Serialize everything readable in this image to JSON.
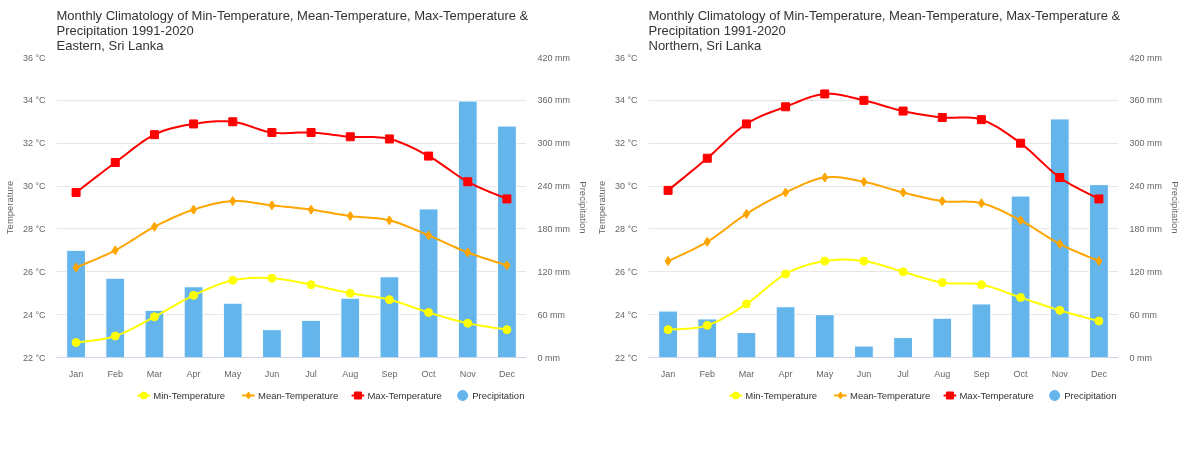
{
  "chart_data": [
    {
      "type": "line",
      "title": "Monthly Climatology of Min-Temperature, Mean-Temperature, Max-Temperature & Precipitation 1991-2020",
      "subtitle": "Eastern, Sri Lanka",
      "ylabel": "Temperature",
      "y2label": "Precipitation",
      "categories": [
        "Jan",
        "Feb",
        "Mar",
        "Apr",
        "May",
        "Jun",
        "Jul",
        "Aug",
        "Sep",
        "Oct",
        "Nov",
        "Dec"
      ],
      "series": [
        {
          "name": "Min-Temperature",
          "marker": "circle",
          "color": "#ffff00",
          "values": [
            22.7,
            23.0,
            23.9,
            24.9,
            25.6,
            25.7,
            25.4,
            25.0,
            24.7,
            24.1,
            23.6,
            23.3
          ]
        },
        {
          "name": "Mean-Temperature",
          "marker": "diamond",
          "color": "#ffa500",
          "values": [
            26.2,
            27.0,
            28.1,
            28.9,
            29.3,
            29.1,
            28.9,
            28.6,
            28.4,
            27.7,
            26.9,
            26.3
          ]
        },
        {
          "name": "Max-Temperature",
          "marker": "square",
          "color": "#ff0000",
          "values": [
            29.7,
            31.1,
            32.4,
            32.9,
            33.0,
            32.5,
            32.5,
            32.3,
            32.2,
            31.4,
            30.2,
            29.4
          ]
        },
        {
          "name": "Precipitation",
          "type": "bar",
          "axis": "y2",
          "color": "#64b5ec",
          "values": [
            150,
            111,
            66,
            99,
            76,
            39,
            52,
            83,
            113,
            208,
            359,
            324
          ]
        }
      ],
      "ylim": [
        22,
        36
      ],
      "yticks": [
        {
          "value": 22,
          "label": "22 °C"
        },
        {
          "value": 24,
          "label": "24 °C"
        },
        {
          "value": 26,
          "label": "26 °C"
        },
        {
          "value": 28,
          "label": "28 °C"
        },
        {
          "value": 30,
          "label": "30 °C"
        },
        {
          "value": 32,
          "label": "32 °C"
        },
        {
          "value": 34,
          "label": "34 °C"
        },
        {
          "value": 36,
          "label": "36 °C"
        }
      ],
      "y2lim": [
        0,
        420
      ],
      "y2ticks": [
        {
          "value": 0,
          "label": "0 mm"
        },
        {
          "value": 60,
          "label": "60 mm"
        },
        {
          "value": 120,
          "label": "120 mm"
        },
        {
          "value": 180,
          "label": "180 mm"
        },
        {
          "value": 240,
          "label": "240 mm"
        },
        {
          "value": 300,
          "label": "300 mm"
        },
        {
          "value": 360,
          "label": "360 mm"
        },
        {
          "value": 420,
          "label": "420 mm"
        }
      ],
      "grid": "y",
      "legend": "bottom"
    },
    {
      "type": "line",
      "title": "Monthly Climatology of Min-Temperature, Mean-Temperature, Max-Temperature & Precipitation 1991-2020",
      "subtitle": "Northern, Sri Lanka",
      "ylabel": "Temperature",
      "y2label": "Precipitation",
      "categories": [
        "Jan",
        "Feb",
        "Mar",
        "Apr",
        "May",
        "Jun",
        "Jul",
        "Aug",
        "Sep",
        "Oct",
        "Nov",
        "Dec"
      ],
      "series": [
        {
          "name": "Min-Temperature",
          "marker": "circle",
          "color": "#ffff00",
          "values": [
            23.3,
            23.5,
            24.5,
            25.9,
            26.5,
            26.5,
            26.0,
            25.5,
            25.4,
            24.8,
            24.2,
            23.7
          ]
        },
        {
          "name": "Mean-Temperature",
          "marker": "diamond",
          "color": "#ffa500",
          "values": [
            26.5,
            27.4,
            28.7,
            29.7,
            30.4,
            30.2,
            29.7,
            29.3,
            29.2,
            28.4,
            27.3,
            26.5
          ]
        },
        {
          "name": "Max-Temperature",
          "marker": "square",
          "color": "#ff0000",
          "values": [
            29.8,
            31.3,
            32.9,
            33.7,
            34.3,
            34.0,
            33.5,
            33.2,
            33.1,
            32.0,
            30.4,
            29.4
          ]
        },
        {
          "name": "Precipitation",
          "type": "bar",
          "axis": "y2",
          "color": "#64b5ec",
          "values": [
            65,
            54,
            35,
            71,
            60,
            16,
            28,
            55,
            75,
            226,
            334,
            242
          ]
        }
      ],
      "ylim": [
        22,
        36
      ],
      "yticks": [
        {
          "value": 22,
          "label": "22 °C"
        },
        {
          "value": 24,
          "label": "24 °C"
        },
        {
          "value": 26,
          "label": "26 °C"
        },
        {
          "value": 28,
          "label": "28 °C"
        },
        {
          "value": 30,
          "label": "30 °C"
        },
        {
          "value": 32,
          "label": "32 °C"
        },
        {
          "value": 34,
          "label": "34 °C"
        },
        {
          "value": 36,
          "label": "36 °C"
        }
      ],
      "y2lim": [
        0,
        420
      ],
      "y2ticks": [
        {
          "value": 0,
          "label": "0 mm"
        },
        {
          "value": 60,
          "label": "60 mm"
        },
        {
          "value": 120,
          "label": "120 mm"
        },
        {
          "value": 180,
          "label": "180 mm"
        },
        {
          "value": 240,
          "label": "240 mm"
        },
        {
          "value": 300,
          "label": "300 mm"
        },
        {
          "value": 360,
          "label": "360 mm"
        },
        {
          "value": 420,
          "label": "420 mm"
        }
      ],
      "grid": "y",
      "legend": "bottom"
    }
  ]
}
